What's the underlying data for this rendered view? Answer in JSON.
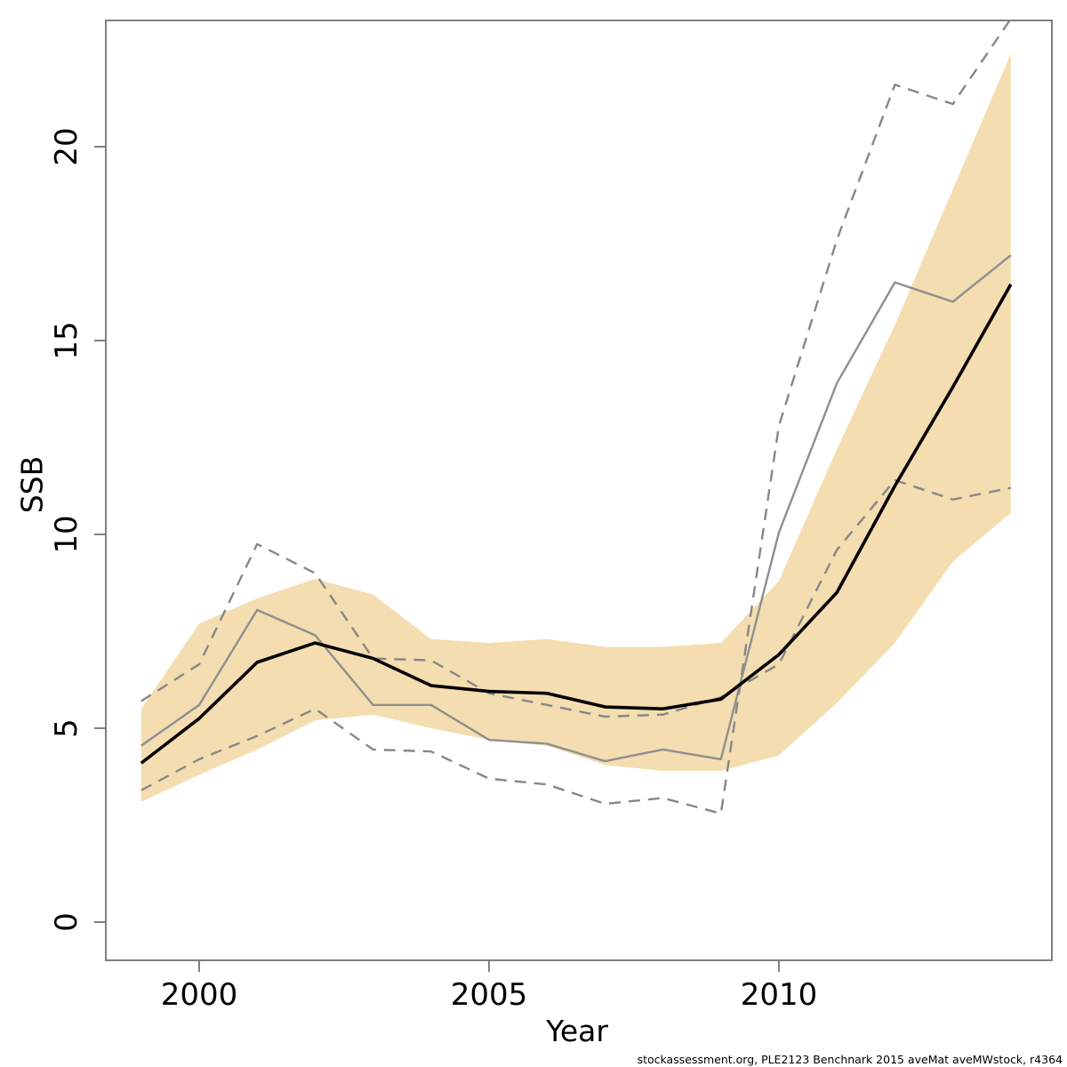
{
  "footer": {
    "text": "stockassessment.org, PLE2123 Benchnark 2015 aveMat aveMWstock, r4364"
  },
  "chart_data": {
    "type": "line",
    "title": "",
    "xlabel": "Year",
    "ylabel": "SSB",
    "x_ticks": [
      2000,
      2005,
      2010
    ],
    "y_ticks": [
      0,
      5,
      10,
      15,
      20
    ],
    "xlim": [
      1998.4,
      2014.7
    ],
    "ylim": [
      -1,
      23.3
    ],
    "grid": false,
    "legend": "none",
    "colors": {
      "band": "#f4ddb0",
      "estimate": "#000000",
      "gray_line": "#8f8f8f",
      "dashed_line": "#878787",
      "axis": "#808080",
      "tick_label": "#000000"
    },
    "x": [
      1999,
      2000,
      2001,
      2002,
      2003,
      2004,
      2005,
      2006,
      2007,
      2008,
      2009,
      2010,
      2011,
      2012,
      2013,
      2014
    ],
    "band": {
      "label": "confidence-band",
      "upper": [
        5.5,
        7.7,
        8.35,
        8.85,
        8.45,
        7.3,
        7.2,
        7.3,
        7.1,
        7.1,
        7.2,
        8.8,
        12.2,
        15.4,
        18.9,
        22.4
      ],
      "lower": [
        3.1,
        3.8,
        4.45,
        5.2,
        5.35,
        5.0,
        4.7,
        4.55,
        4.05,
        3.9,
        3.9,
        4.3,
        5.65,
        7.2,
        9.3,
        10.55
      ]
    },
    "series": [
      {
        "name": "ssb-estimate-line",
        "style": "solid",
        "width": 3.6,
        "color_key": "estimate",
        "values": [
          4.1,
          5.25,
          6.7,
          7.2,
          6.8,
          6.1,
          5.95,
          5.9,
          5.55,
          5.5,
          5.75,
          6.9,
          8.5,
          11.25,
          13.8,
          16.45
        ]
      },
      {
        "name": "alternative-run-line",
        "style": "solid",
        "width": 2.4,
        "color_key": "gray_line",
        "values": [
          4.55,
          5.6,
          8.05,
          7.4,
          5.6,
          5.6,
          4.7,
          4.6,
          4.15,
          4.45,
          4.2,
          10.05,
          13.9,
          16.5,
          16.0,
          17.2
        ]
      },
      {
        "name": "dashed-bound-line-1",
        "style": "dashed",
        "width": 2.4,
        "color_key": "dashed_line",
        "values": [
          5.7,
          6.65,
          9.75,
          9.0,
          6.8,
          6.75,
          5.9,
          5.6,
          5.3,
          5.35,
          5.8,
          6.65,
          9.6,
          11.4,
          10.9,
          11.2
        ]
      },
      {
        "name": "dashed-bound-line-2",
        "style": "dashed",
        "width": 2.4,
        "color_key": "dashed_line",
        "values": [
          3.4,
          4.2,
          4.8,
          5.5,
          4.45,
          4.4,
          3.7,
          3.55,
          3.05,
          3.2,
          2.8,
          12.8,
          17.6,
          21.6,
          21.1,
          23.3
        ]
      }
    ]
  }
}
